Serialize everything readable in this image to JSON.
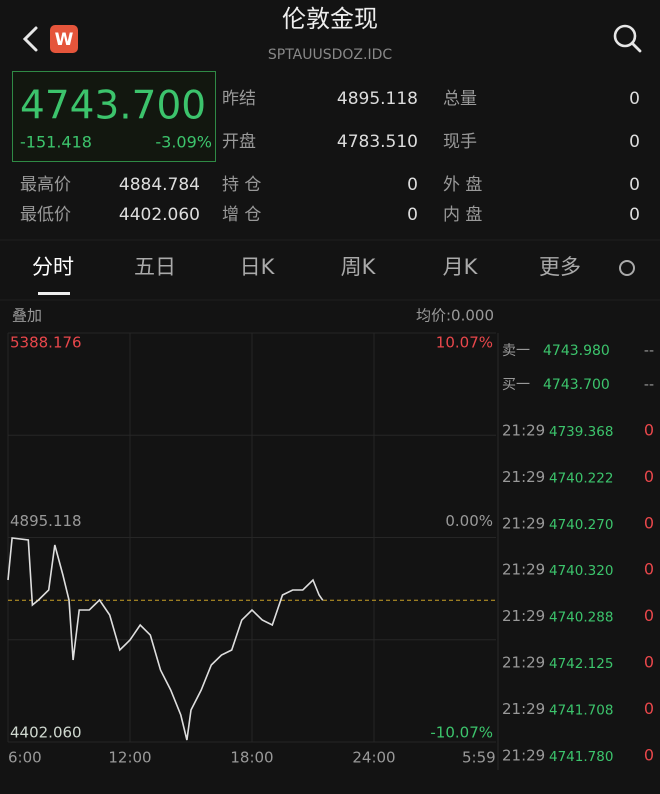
{
  "header": {
    "title": "伦敦金现",
    "code": "SPTAUUSDOZ.IDC",
    "badge": "W"
  },
  "quote": {
    "price": "4743.700",
    "change": "-151.418",
    "change_pct": "-3.09%"
  },
  "stats": [
    [
      {
        "label": "昨结",
        "value": "4895.118"
      },
      {
        "label": "总量",
        "value": "0"
      }
    ],
    [
      {
        "label": "开盘",
        "value": "4783.510"
      },
      {
        "label": "现手",
        "value": "0"
      }
    ],
    [
      {
        "label": "最高价",
        "value": "4884.784"
      },
      {
        "label": "持 仓",
        "value": "0"
      },
      {
        "label": "外 盘",
        "value": "0"
      }
    ],
    [
      {
        "label": "最低价",
        "value": "4402.060"
      },
      {
        "label": "增 仓",
        "value": "0"
      },
      {
        "label": "内 盘",
        "value": "0"
      }
    ]
  ],
  "tabs": [
    "分时",
    "五日",
    "日K",
    "周K",
    "月K",
    "更多"
  ],
  "chart_header": {
    "overlay": "叠加",
    "avg_price": "均价:0.000"
  },
  "chart_data": {
    "type": "line",
    "color": "#dedede",
    "x": [
      "6:00",
      "6:12",
      "7:00",
      "7:12",
      "7:30",
      "8:00",
      "8:18",
      "8:42",
      "9:00",
      "9:12",
      "9:30",
      "10:00",
      "10:30",
      "11:00",
      "11:30",
      "12:00",
      "12:30",
      "13:00",
      "13:30",
      "14:00",
      "14:30",
      "14:48",
      "15:00",
      "15:30",
      "16:00",
      "16:30",
      "17:00",
      "17:30",
      "18:00",
      "18:30",
      "19:00",
      "19:30",
      "20:00",
      "20:30",
      "21:00",
      "21:18",
      "21:29"
    ],
    "values": [
      4792.7,
      4893.9,
      4889.1,
      4732.4,
      4744.5,
      4768.6,
      4877.1,
      4804.7,
      4744.5,
      4599.8,
      4720.4,
      4720.4,
      4744.5,
      4708.3,
      4623.9,
      4648.0,
      4684.2,
      4660.1,
      4575.7,
      4527.5,
      4467.2,
      4406.9,
      4479.3,
      4527.5,
      4587.7,
      4611.9,
      4623.9,
      4696.2,
      4720.4,
      4696.2,
      4684.2,
      4756.5,
      4768.6,
      4768.6,
      4792.7,
      4756.5,
      4743.7
    ],
    "ylim": [
      4402.06,
      5388.176
    ],
    "yticks": [
      {
        "value": 4402.06,
        "label": "4402.060"
      },
      {
        "value": 4895.118,
        "label": "4895.118"
      },
      {
        "value": 5388.176,
        "label": "5388.176"
      }
    ],
    "y2lim": [
      -10.07,
      10.07
    ],
    "y2ticks": [
      {
        "value": -10.07,
        "label": "-10.07%"
      },
      {
        "value": 0,
        "label": "0.00%"
      },
      {
        "value": 10.07,
        "label": "10.07%"
      }
    ],
    "xticks": [
      "6:00",
      "12:00",
      "18:00",
      "24:00",
      "5:59"
    ],
    "grid": true
  },
  "order_book": [
    {
      "label": "卖一",
      "price": "4743.980",
      "volume": "--"
    },
    {
      "label": "买一",
      "price": "4743.700",
      "volume": "--"
    }
  ],
  "trades": [
    {
      "time": "21:29",
      "price": "4739.368",
      "volume": "0"
    },
    {
      "time": "21:29",
      "price": "4740.222",
      "volume": "0"
    },
    {
      "time": "21:29",
      "price": "4740.270",
      "volume": "0"
    },
    {
      "time": "21:29",
      "price": "4740.320",
      "volume": "0"
    },
    {
      "time": "21:29",
      "price": "4740.288",
      "volume": "0"
    },
    {
      "time": "21:29",
      "price": "4742.125",
      "volume": "0"
    },
    {
      "time": "21:29",
      "price": "4741.708",
      "volume": "0"
    },
    {
      "time": "21:29",
      "price": "4741.780",
      "volume": "0"
    }
  ]
}
